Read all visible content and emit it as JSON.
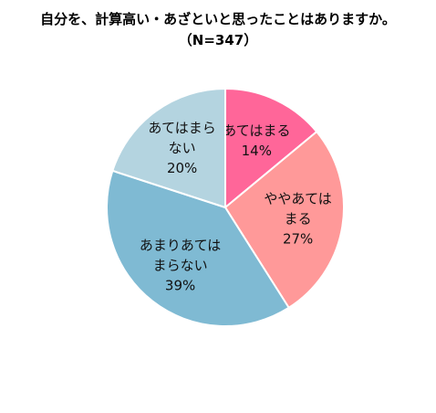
{
  "chart_data": {
    "type": "pie",
    "title": "自分を、計算高い・あざといと思ったことはありますか。",
    "subtitle": "（N=347）",
    "slices": [
      {
        "label_lines": [
          "あてはまる"
        ],
        "value": 14,
        "value_text": "14%",
        "color": "#ff6699"
      },
      {
        "label_lines": [
          "ややあては",
          "まる"
        ],
        "value": 27,
        "value_text": "27%",
        "color": "#ff9999"
      },
      {
        "label_lines": [
          "あまりあては",
          "まらない"
        ],
        "value": 39,
        "value_text": "39%",
        "color": "#7fbad3"
      },
      {
        "label_lines": [
          "あてはまら",
          "ない"
        ],
        "value": 20,
        "value_text": "20%",
        "color": "#b4d4e0"
      }
    ],
    "start_angle_deg": 0,
    "direction": "clockwise",
    "legend": "none",
    "border_color": "#ffffff"
  }
}
